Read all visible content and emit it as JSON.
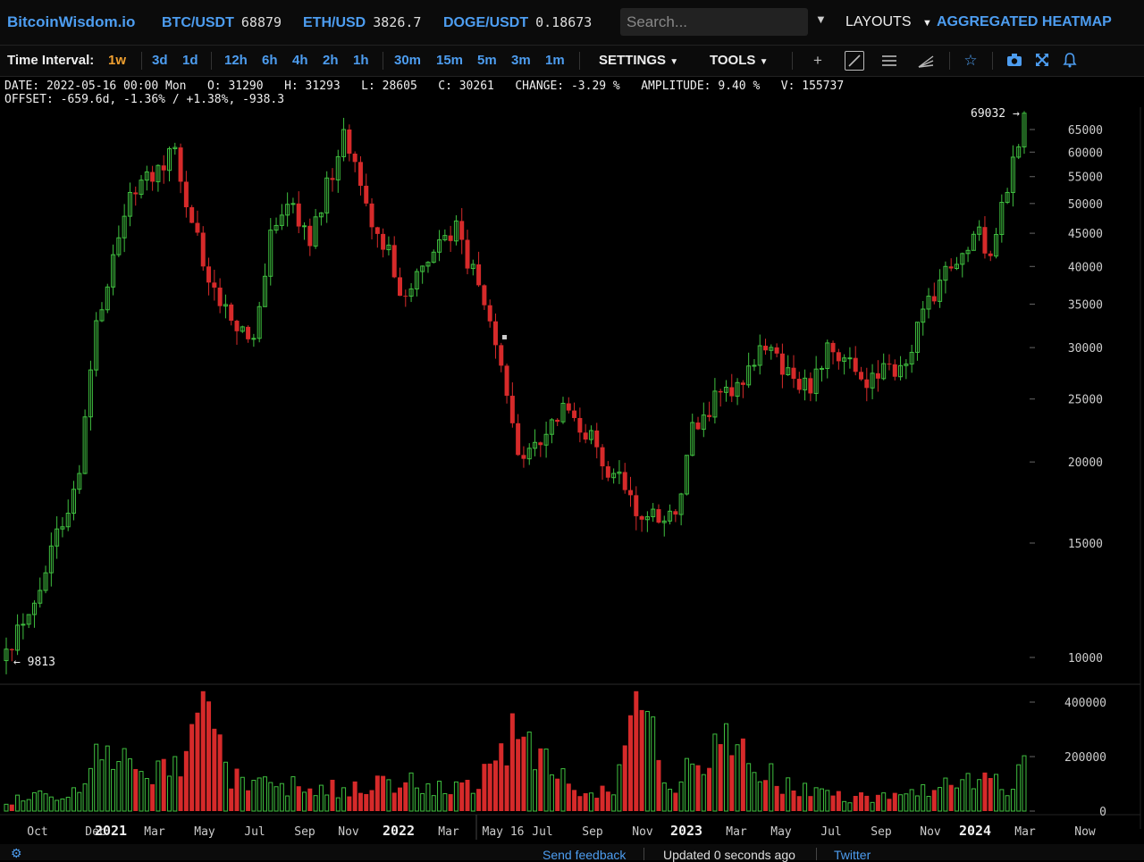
{
  "header": {
    "logo": "BitcoinWisdom.io",
    "tickers": [
      {
        "symbol": "BTC/USDT",
        "price": "68879"
      },
      {
        "symbol": "ETH/USD",
        "price": "3826.7"
      },
      {
        "symbol": "DOGE/USDT",
        "price": "0.18673"
      }
    ],
    "search_placeholder": "Search...",
    "layouts_label": "LAYOUTS",
    "heatmap_label": "AGGREGATED HEATMAP"
  },
  "interval_bar": {
    "label": "Time Interval:",
    "intervals": [
      "1w",
      "3d",
      "1d",
      "12h",
      "6h",
      "4h",
      "2h",
      "1h",
      "30m",
      "15m",
      "5m",
      "3m",
      "1m"
    ],
    "active": "1w",
    "settings_label": "SETTINGS",
    "tools_label": "TOOLS"
  },
  "info": {
    "line1": "DATE: 2022-05-16 00:00 Mon   O: 31290   H: 31293   L: 28605   C: 30261   CHANGE: -3.29 %   AMPLITUDE: 9.40 %   V: 155737",
    "line2": "OFFSET: -659.6d, -1.36% / +1.38%, -938.3"
  },
  "chart_data": {
    "type": "candlestick",
    "interval": "1w",
    "y_scale": "log",
    "price_ticks": [
      65000,
      60000,
      55000,
      50000,
      45000,
      40000,
      35000,
      30000,
      25000,
      20000,
      15000,
      10000
    ],
    "volume_ticks": [
      400000,
      200000,
      0
    ],
    "x_labels": [
      "Oct",
      "Dec",
      "2021",
      "Mar",
      "May",
      "Jul",
      "Sep",
      "Nov",
      "2022",
      "Mar",
      "May 16",
      "Jul",
      "Sep",
      "Nov",
      "2023",
      "Mar",
      "May",
      "Jul",
      "Sep",
      "Nov",
      "2024",
      "Mar",
      "Now"
    ],
    "max_label": "69032 →",
    "min_label": "← 9813",
    "keypoints": [
      [
        "2020-09-14",
        10300,
        40000
      ],
      [
        "2020-11-02",
        13500,
        60000
      ],
      [
        "2020-12-14",
        19200,
        80000
      ],
      [
        "2021-01-04",
        33000,
        300000
      ],
      [
        "2021-02-15",
        52000,
        200000
      ],
      [
        "2021-04-12",
        61000,
        150000
      ],
      [
        "2021-05-17",
        40000,
        380000
      ],
      [
        "2021-06-21",
        33000,
        150000
      ],
      [
        "2021-07-19",
        31000,
        100000
      ],
      [
        "2021-08-09",
        45500,
        90000
      ],
      [
        "2021-09-06",
        50000,
        100000
      ],
      [
        "2021-09-27",
        43000,
        80000
      ],
      [
        "2021-11-08",
        65000,
        90000
      ],
      [
        "2021-12-06",
        50000,
        100000
      ],
      [
        "2022-01-24",
        36000,
        120000
      ],
      [
        "2022-03-28",
        47000,
        80000
      ],
      [
        "2022-05-16",
        30261,
        155737
      ],
      [
        "2022-06-13",
        20500,
        330000
      ],
      [
        "2022-08-15",
        24000,
        100000
      ],
      [
        "2022-10-10",
        19200,
        80000
      ],
      [
        "2022-11-07",
        16500,
        430000
      ],
      [
        "2022-12-26",
        16600,
        80000
      ],
      [
        "2023-01-16",
        23000,
        200000
      ],
      [
        "2023-03-13",
        26500,
        260000
      ],
      [
        "2023-04-10",
        30200,
        150000
      ],
      [
        "2023-06-12",
        25500,
        70000
      ],
      [
        "2023-07-03",
        30500,
        60000
      ],
      [
        "2023-08-21",
        26000,
        50000
      ],
      [
        "2023-10-16",
        29500,
        60000
      ],
      [
        "2023-11-06",
        36000,
        80000
      ],
      [
        "2024-01-08",
        46000,
        130000
      ],
      [
        "2024-01-22",
        41500,
        200000
      ],
      [
        "2024-02-12",
        52000,
        80000
      ],
      [
        "2024-03-04",
        68879,
        180000
      ]
    ],
    "colors": {
      "up": "#3fbf3f",
      "down": "#d62a2a",
      "background": "#000000",
      "axis_text": "#cccccc",
      "link": "#4d9df0",
      "active": "#f0a030"
    }
  },
  "footer": {
    "send_feedback": "Send feedback",
    "updated": "Updated 0 seconds ago",
    "twitter": "Twitter"
  }
}
